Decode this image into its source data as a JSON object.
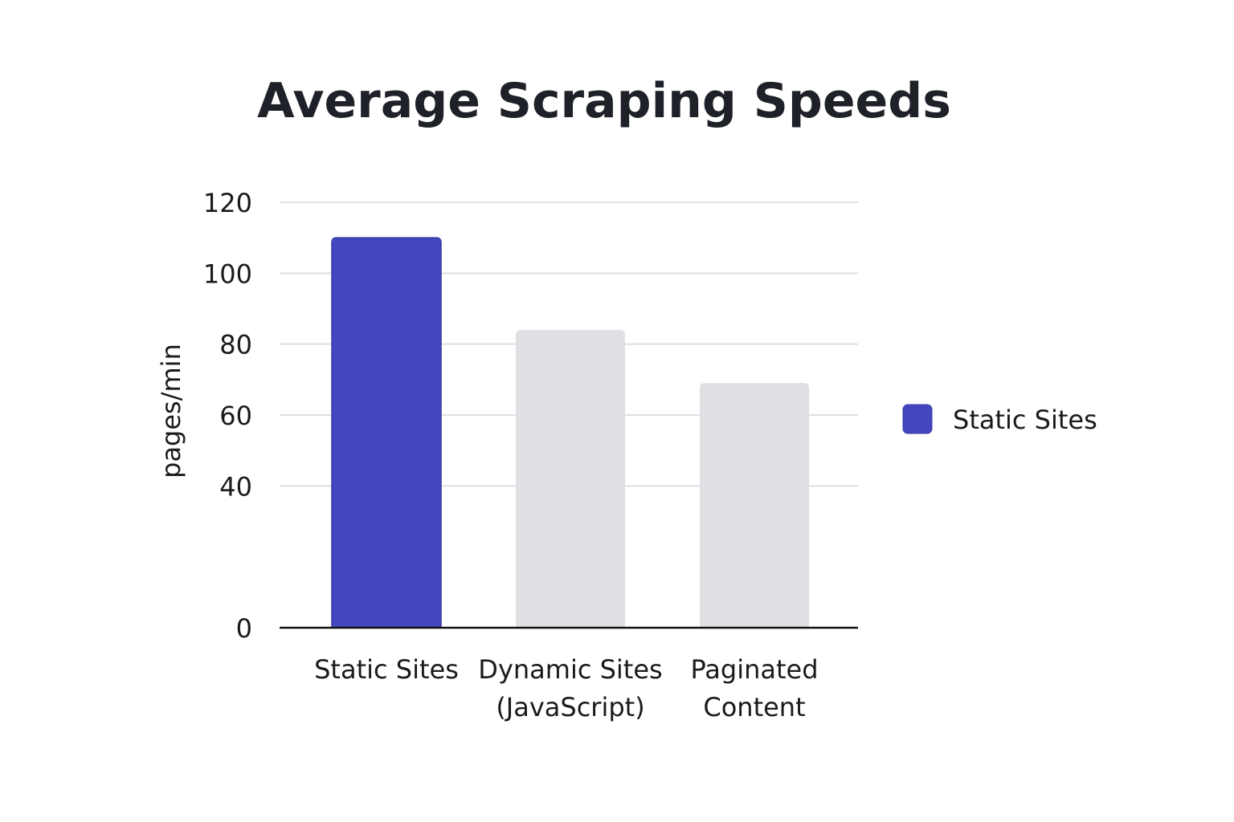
{
  "chart_data": {
    "type": "bar",
    "title": "Average Scraping Speeds",
    "xlabel": "",
    "ylabel": "pages/min",
    "categories": [
      [
        "Static Sites"
      ],
      [
        "Dynamic Sites",
        "(JavaScript)"
      ],
      [
        "Paginated",
        "Content"
      ]
    ],
    "values": [
      110,
      84,
      69
    ],
    "ylim": [
      0,
      120
    ],
    "yticks": [
      0,
      40,
      60,
      80,
      100,
      120
    ],
    "grid": true,
    "highlight_index": 0,
    "colors": {
      "highlight": "#4446bd",
      "muted": "#dfe0e4",
      "highlight_border": "#383aa8"
    },
    "legend": {
      "placement": "right",
      "entries": [
        {
          "label": "Static Sites",
          "color": "#4446bd"
        }
      ]
    }
  }
}
